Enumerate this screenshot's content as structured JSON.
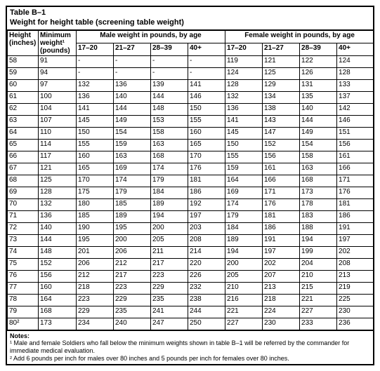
{
  "title_line1": "Table B–1",
  "title_line2": "Weight for height table (screening table weight)",
  "columns": {
    "height": "Height (inches)",
    "min_weight": "Minimum weight¹ (pounds)",
    "male_group": "Male weight in pounds, by age",
    "female_group": "Female weight in pounds, by age",
    "age_17_20": "17–20",
    "age_21_27": "21–27",
    "age_28_39": "28–39",
    "age_40": "40+"
  },
  "rows": [
    {
      "h": "58",
      "m": "91",
      "male": [
        "-",
        "-",
        "-",
        "-"
      ],
      "female": [
        "119",
        "121",
        "122",
        "124"
      ]
    },
    {
      "h": "59",
      "m": "94",
      "male": [
        "-",
        "-",
        "-",
        "-"
      ],
      "female": [
        "124",
        "125",
        "126",
        "128"
      ]
    },
    {
      "h": "60",
      "m": "97",
      "male": [
        "132",
        "136",
        "139",
        "141"
      ],
      "female": [
        "128",
        "129",
        "131",
        "133"
      ]
    },
    {
      "h": "61",
      "m": "100",
      "male": [
        "136",
        "140",
        "144",
        "146"
      ],
      "female": [
        "132",
        "134",
        "135",
        "137"
      ]
    },
    {
      "h": "62",
      "m": "104",
      "male": [
        "141",
        "144",
        "148",
        "150"
      ],
      "female": [
        "136",
        "138",
        "140",
        "142"
      ]
    },
    {
      "h": "63",
      "m": "107",
      "male": [
        "145",
        "149",
        "153",
        "155"
      ],
      "female": [
        "141",
        "143",
        "144",
        "146"
      ]
    },
    {
      "h": "64",
      "m": "110",
      "male": [
        "150",
        "154",
        "158",
        "160"
      ],
      "female": [
        "145",
        "147",
        "149",
        "151"
      ]
    },
    {
      "h": "65",
      "m": "114",
      "male": [
        "155",
        "159",
        "163",
        "165"
      ],
      "female": [
        "150",
        "152",
        "154",
        "156"
      ]
    },
    {
      "h": "66",
      "m": "117",
      "male": [
        "160",
        "163",
        "168",
        "170"
      ],
      "female": [
        "155",
        "156",
        "158",
        "161"
      ]
    },
    {
      "h": "67",
      "m": "121",
      "male": [
        "165",
        "169",
        "174",
        "176"
      ],
      "female": [
        "159",
        "161",
        "163",
        "166"
      ]
    },
    {
      "h": "68",
      "m": "125",
      "male": [
        "170",
        "174",
        "179",
        "181"
      ],
      "female": [
        "164",
        "166",
        "168",
        "171"
      ]
    },
    {
      "h": "69",
      "m": "128",
      "male": [
        "175",
        "179",
        "184",
        "186"
      ],
      "female": [
        "169",
        "171",
        "173",
        "176"
      ]
    },
    {
      "h": "70",
      "m": "132",
      "male": [
        "180",
        "185",
        "189",
        "192"
      ],
      "female": [
        "174",
        "176",
        "178",
        "181"
      ]
    },
    {
      "h": "71",
      "m": "136",
      "male": [
        "185",
        "189",
        "194",
        "197"
      ],
      "female": [
        "179",
        "181",
        "183",
        "186"
      ]
    },
    {
      "h": "72",
      "m": "140",
      "male": [
        "190",
        "195",
        "200",
        "203"
      ],
      "female": [
        "184",
        "186",
        "188",
        "191"
      ]
    },
    {
      "h": "73",
      "m": "144",
      "male": [
        "195",
        "200",
        "205",
        "208"
      ],
      "female": [
        "189",
        "191",
        "194",
        "197"
      ]
    },
    {
      "h": "74",
      "m": "148",
      "male": [
        "201",
        "206",
        "211",
        "214"
      ],
      "female": [
        "194",
        "197",
        "199",
        "202"
      ]
    },
    {
      "h": "75",
      "m": "152",
      "male": [
        "206",
        "212",
        "217",
        "220"
      ],
      "female": [
        "200",
        "202",
        "204",
        "208"
      ]
    },
    {
      "h": "76",
      "m": "156",
      "male": [
        "212",
        "217",
        "223",
        "226"
      ],
      "female": [
        "205",
        "207",
        "210",
        "213"
      ]
    },
    {
      "h": "77",
      "m": "160",
      "male": [
        "218",
        "223",
        "229",
        "232"
      ],
      "female": [
        "210",
        "213",
        "215",
        "219"
      ]
    },
    {
      "h": "78",
      "m": "164",
      "male": [
        "223",
        "229",
        "235",
        "238"
      ],
      "female": [
        "216",
        "218",
        "221",
        "225"
      ]
    },
    {
      "h": "79",
      "m": "168",
      "male": [
        "229",
        "235",
        "241",
        "244"
      ],
      "female": [
        "221",
        "224",
        "227",
        "230"
      ]
    },
    {
      "h": "80²",
      "m": "173",
      "male": [
        "234",
        "240",
        "247",
        "250"
      ],
      "female": [
        "227",
        "230",
        "233",
        "236"
      ]
    }
  ],
  "notes": {
    "label": "Notes:",
    "n1": "¹ Male and female Soldiers who fall below the minimum weights shown in table B–1 will be referred by the commander for immediate medical evaluation.",
    "n2": "² Add 6 pounds per inch for males over 80 inches and 5 pounds per inch for females over 80 inches."
  },
  "style": {
    "background_color": "#ffffff",
    "border_color": "#000000",
    "text_color": "#000000",
    "font_family": "Arial",
    "title_fontsize_pt": 11,
    "cell_fontsize_pt": 10,
    "notes_fontsize_pt": 9
  }
}
